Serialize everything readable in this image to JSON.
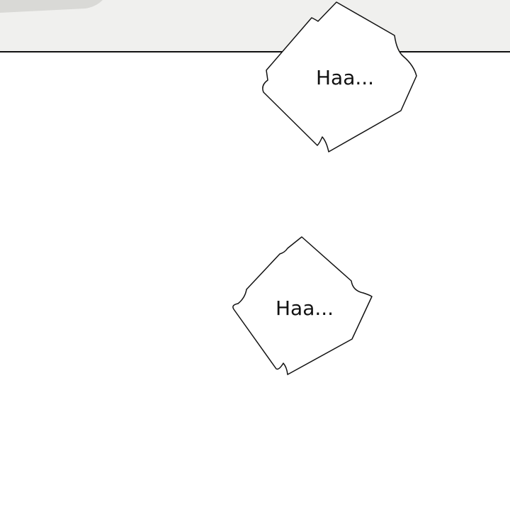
{
  "colors": {
    "background": "#ffffff",
    "top_panel": "#f0f0ee",
    "top_panel_shape": "#d9d9d6",
    "bubble_fill": "#ffffff",
    "bubble_stroke": "#111111",
    "text": "#111111"
  },
  "bubbles": [
    {
      "text": "Haa..."
    },
    {
      "text": "Haa..."
    }
  ]
}
